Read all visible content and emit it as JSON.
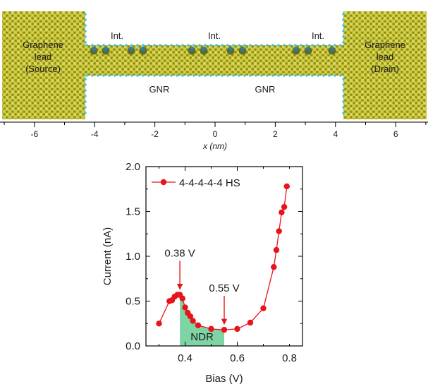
{
  "structure_panel": {
    "leads": {
      "left": [
        "Graphene",
        "lead",
        "(Source)"
      ],
      "right": [
        "Graphene",
        "lead",
        "(Drain)"
      ]
    },
    "interface_label": "Int.",
    "ribbon_label": "GNR",
    "axis": {
      "label": "x (nm)",
      "ticks": [
        -6,
        -4,
        -2,
        0,
        2,
        4,
        6
      ]
    },
    "colors": {
      "carbon": "#b5b428",
      "edge_h": "#46c4e0",
      "dopant": "#2a7fb0"
    }
  },
  "chart_data": {
    "type": "line",
    "xlabel": "Bias (V)",
    "ylabel": "Current (nA)",
    "xlim": [
      0.25,
      0.85
    ],
    "ylim": [
      0.0,
      2.0
    ],
    "xticks": [
      "0.4",
      "0.6",
      "0.8"
    ],
    "yticks": [
      "0.0",
      "0.5",
      "1.0",
      "1.5",
      "2.0"
    ],
    "grid": false,
    "legend_position": "top-left",
    "series": [
      {
        "name": "4-4-4-4-4 HS",
        "color": "#e8141b",
        "x": [
          0.3,
          0.34,
          0.35,
          0.36,
          0.37,
          0.38,
          0.39,
          0.4,
          0.41,
          0.42,
          0.43,
          0.45,
          0.5,
          0.55,
          0.6,
          0.65,
          0.7,
          0.74,
          0.75,
          0.76,
          0.77,
          0.78,
          0.79
        ],
        "y": [
          0.25,
          0.5,
          0.51,
          0.55,
          0.57,
          0.57,
          0.53,
          0.43,
          0.37,
          0.33,
          0.28,
          0.23,
          0.19,
          0.18,
          0.19,
          0.26,
          0.42,
          0.88,
          1.07,
          1.28,
          1.49,
          1.55,
          1.78
        ]
      }
    ],
    "annotations": [
      {
        "text": "0.38 V",
        "x": 0.38,
        "y": 0.57
      },
      {
        "text": "0.55 V",
        "x": 0.55,
        "y": 0.18
      }
    ],
    "region": {
      "label": "NDR",
      "x_from": 0.38,
      "x_to": 0.55,
      "color": "#7fd4a6"
    }
  }
}
